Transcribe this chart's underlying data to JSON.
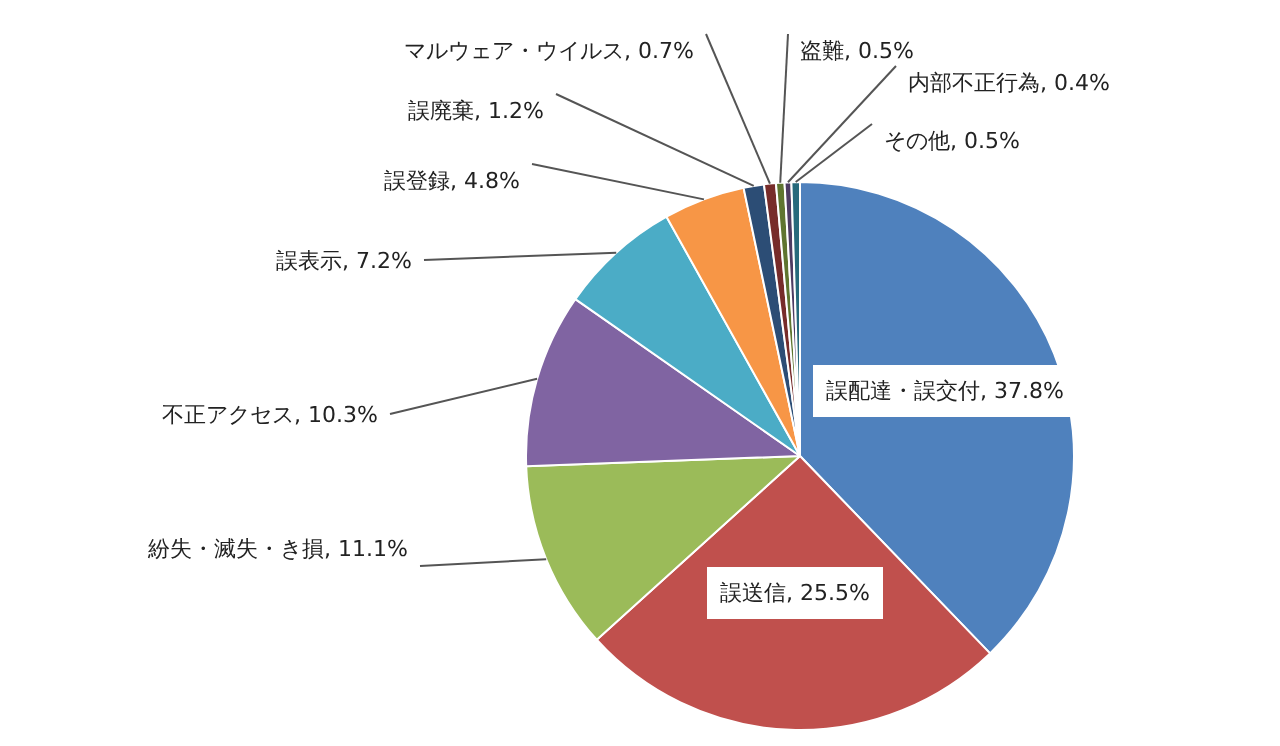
{
  "chart_data": {
    "type": "pie",
    "categories": [
      "誤配達・誤交付",
      "誤送信",
      "紛失・滅失・き損",
      "不正アクセス",
      "誤表示",
      "誤登録",
      "誤廃棄",
      "マルウェア・ウイルス",
      "盗難",
      "内部不正行為",
      "その他"
    ],
    "values": [
      37.8,
      25.5,
      11.1,
      10.3,
      7.2,
      4.8,
      1.2,
      0.7,
      0.5,
      0.4,
      0.5
    ],
    "value_labels": [
      "37.8%",
      "25.5%",
      "11.1%",
      "10.3%",
      "7.2%",
      "4.8%",
      "1.2%",
      "0.7%",
      "0.5%",
      "0.4%",
      "0.5%"
    ],
    "colors": [
      "#4f81bd",
      "#c0504d",
      "#9bbb59",
      "#8064a2",
      "#4bacc6",
      "#f79646",
      "#2c4d75",
      "#772c2a",
      "#5f7530",
      "#4d3b62",
      "#276a7c"
    ],
    "legend": false
  }
}
